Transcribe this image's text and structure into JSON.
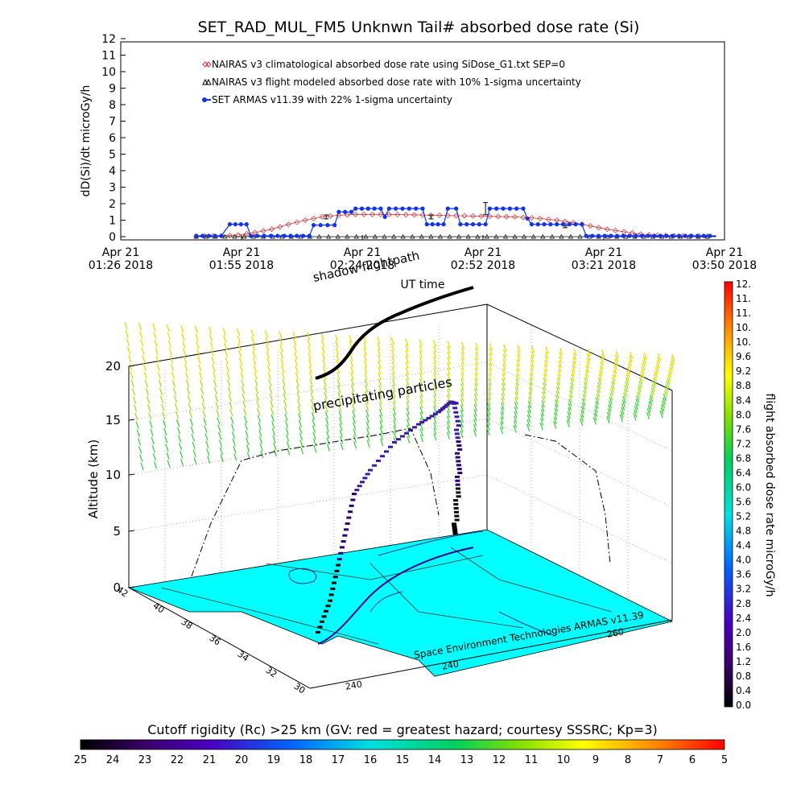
{
  "title": "SET_RAD_MUL_FM5 Unknwn Tail#  absorbed dose rate (Si)",
  "chart_data": [
    {
      "type": "line",
      "title": "SET_RAD_MUL_FM5 Unknwn Tail#  absorbed dose rate (Si)",
      "ylabel": "dD(Si)/dt microGy/h",
      "xlabel": "UT time",
      "ylim": [
        0,
        12
      ],
      "yticks": [
        "0",
        "1",
        "2",
        "3",
        "4",
        "5",
        "6",
        "7",
        "8",
        "9",
        "10",
        "11",
        "12"
      ],
      "xticks": [
        {
          "date": "Apr 21",
          "time": "01:26 2018"
        },
        {
          "date": "Apr 21",
          "time": "01:55 2018"
        },
        {
          "date": "Apr 21",
          "time": "02:24 2018"
        },
        {
          "date": "Apr 21",
          "time": "02:52 2018"
        },
        {
          "date": "Apr 21",
          "time": "03:21 2018"
        },
        {
          "date": "Apr 21",
          "time": "03:50 2018"
        }
      ],
      "x_minutes_range": [
        86,
        230
      ],
      "legend_placement": "top-left",
      "series": [
        {
          "name": "NAIRAS v3 climatological absorbed dose rate using SiDose_G1.txt SEP=0",
          "marker": "diamond",
          "color": "#cc3333",
          "points": [
            [
              104,
              0.03
            ],
            [
              110,
              0.05
            ],
            [
              114,
              0.1
            ],
            [
              118,
              0.25
            ],
            [
              122,
              0.45
            ],
            [
              126,
              0.75
            ],
            [
              130,
              1.0
            ],
            [
              134,
              1.2
            ],
            [
              138,
              1.3
            ],
            [
              142,
              1.35
            ],
            [
              150,
              1.35
            ],
            [
              160,
              1.3
            ],
            [
              170,
              1.25
            ],
            [
              180,
              1.2
            ],
            [
              186,
              1.1
            ],
            [
              190,
              1.0
            ],
            [
              194,
              0.85
            ],
            [
              198,
              0.65
            ],
            [
              202,
              0.45
            ],
            [
              206,
              0.3
            ],
            [
              210,
              0.15
            ],
            [
              214,
              0.08
            ],
            [
              220,
              0.04
            ],
            [
              228,
              0.02
            ]
          ]
        },
        {
          "name": "NAIRAS v3 flight modeled absorbed dose rate with 10% 1-sigma uncertainty",
          "marker": "triangle",
          "color": "#000000",
          "points": [
            [
              104,
              0.0
            ],
            [
              120,
              0.0
            ],
            [
              140,
              0.0
            ],
            [
              160,
              0.0
            ],
            [
              180,
              0.0
            ],
            [
              200,
              0.0
            ],
            [
              228,
              0.0
            ]
          ],
          "error_bars": [
            [
              135,
              1.2,
              0.12
            ],
            [
              160,
              1.2,
              0.12
            ],
            [
              192,
              0.6,
              0.06
            ]
          ]
        },
        {
          "name": "SET ARMAS v11.39 with 22% 1-sigma uncertainty",
          "marker": "circle",
          "color": "#1133ee",
          "points": [
            [
              104,
              0.05
            ],
            [
              110,
              0.05
            ],
            [
              112,
              0.75
            ],
            [
              116,
              0.75
            ],
            [
              117,
              0.05
            ],
            [
              125,
              0.05
            ],
            [
              131,
              0.05
            ],
            [
              132,
              0.7
            ],
            [
              137,
              0.7
            ],
            [
              138,
              1.5
            ],
            [
              141,
              1.5
            ],
            [
              142,
              1.7
            ],
            [
              148,
              1.7
            ],
            [
              149,
              1.2
            ],
            [
              150,
              1.7
            ],
            [
              158,
              1.7
            ],
            [
              159,
              0.75
            ],
            [
              163,
              0.75
            ],
            [
              164,
              1.7
            ],
            [
              166,
              1.7
            ],
            [
              167,
              0.75
            ],
            [
              173,
              0.75
            ],
            [
              174,
              1.7
            ],
            [
              182,
              1.7
            ],
            [
              183,
              1.1
            ],
            [
              184,
              0.75
            ],
            [
              196,
              0.75
            ],
            [
              197,
              0.05
            ],
            [
              228,
              0.05
            ]
          ],
          "error_bars": [
            [
              173,
              1.7,
              0.37
            ]
          ]
        }
      ]
    },
    {
      "type": "scatter",
      "title": "",
      "zlabel": "Altitude (km)",
      "zticks": [
        "0",
        "5",
        "10",
        "15",
        "20"
      ],
      "lat_ticks": [
        "30",
        "32",
        "34",
        "36",
        "38",
        "40",
        "42"
      ],
      "lon_ticks": [
        "240",
        "240",
        "260"
      ],
      "annotations": [
        "precipitating particles",
        "shadow flightpath",
        "flightpath"
      ],
      "credit": "Space Environment Technologies ARMAS v11.39",
      "colorbar_label": "flight absorbed dose rate microGy/h",
      "colorbar_ticks": [
        "0.0",
        "0.4",
        "0.8",
        "1.2",
        "1.6",
        "2.0",
        "2.4",
        "2.8",
        "3.2",
        "3.6",
        "4.0",
        "4.4",
        "4.8",
        "5.2",
        "5.6",
        "6.0",
        "6.4",
        "6.8",
        "7.2",
        "7.6",
        "8.0",
        "8.4",
        "8.8",
        "9.2",
        "9.6",
        "10.",
        "10.",
        "11.",
        "11.",
        "12."
      ],
      "map_color": "#00ffff",
      "altitude_profile_km": [
        1,
        3,
        5,
        7,
        9,
        10,
        11,
        11.5,
        12,
        12.6,
        12.3,
        10,
        8,
        6,
        4,
        2,
        1
      ]
    }
  ],
  "rigidity_bar": {
    "title": "Cutoff rigidity (Rc) >25 km (GV: red = greatest hazard; courtesy SSSRC; Kp=3)",
    "ticks": [
      "25",
      "24",
      "23",
      "22",
      "21",
      "20",
      "19",
      "18",
      "17",
      "16",
      "15",
      "14",
      "13",
      "12",
      "11",
      "10",
      "9",
      "8",
      "7",
      "6",
      "5"
    ]
  }
}
